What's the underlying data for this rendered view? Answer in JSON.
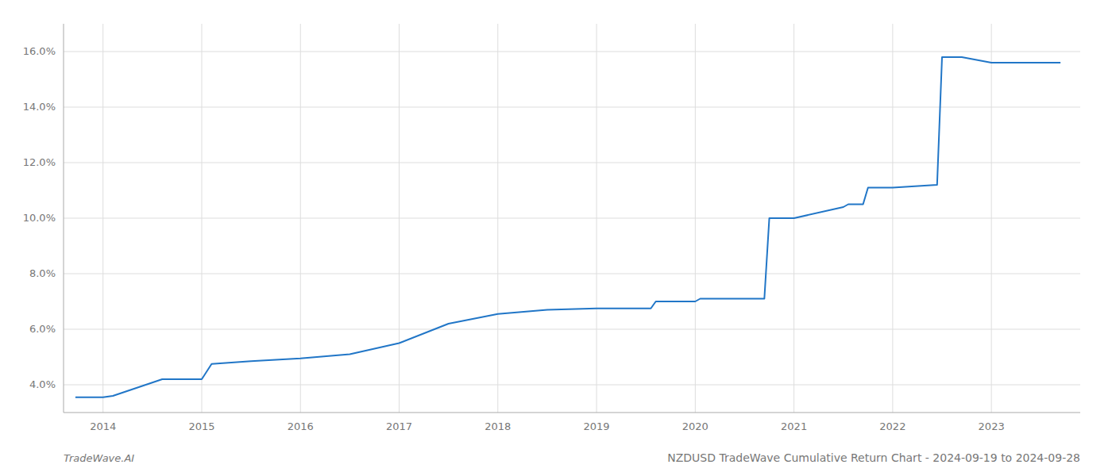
{
  "chart_data": {
    "type": "line",
    "title": "NZDUSD TradeWave Cumulative Return Chart - 2024-09-19 to 2024-09-28",
    "annotations": [
      "TradeWave.AI"
    ],
    "x": [
      2013.72,
      2014.0,
      2014.1,
      2014.6,
      2015.0,
      2015.1,
      2015.5,
      2016.0,
      2016.5,
      2017.0,
      2017.5,
      2018.0,
      2018.5,
      2019.0,
      2019.05,
      2019.55,
      2019.6,
      2020.0,
      2020.05,
      2020.7,
      2020.75,
      2021.0,
      2021.5,
      2021.55,
      2021.7,
      2021.75,
      2022.0,
      2022.45,
      2022.5,
      2022.7,
      2023.0,
      2023.7
    ],
    "values": [
      3.55,
      3.55,
      3.6,
      4.2,
      4.2,
      4.75,
      4.85,
      4.95,
      5.1,
      5.5,
      6.2,
      6.55,
      6.7,
      6.75,
      6.75,
      6.75,
      7.0,
      7.0,
      7.1,
      7.1,
      10.0,
      10.0,
      10.4,
      10.5,
      10.5,
      11.1,
      11.1,
      11.2,
      15.8,
      15.8,
      15.6,
      15.6
    ],
    "color": "#2176c7",
    "xlim": [
      2013.6,
      2023.9
    ],
    "xticks": [
      2014,
      2015,
      2016,
      2017,
      2018,
      2019,
      2020,
      2021,
      2022,
      2023
    ],
    "ylim": [
      3.0,
      17.0
    ],
    "yticks": [
      {
        "value": 4.0,
        "label": "4.0%"
      },
      {
        "value": 6.0,
        "label": "6.0%"
      },
      {
        "value": 8.0,
        "label": "8.0%"
      },
      {
        "value": 10.0,
        "label": "10.0%"
      },
      {
        "value": 12.0,
        "label": "12.0%"
      },
      {
        "value": 14.0,
        "label": "14.0%"
      },
      {
        "value": 16.0,
        "label": "16.0%"
      }
    ],
    "grid": true
  }
}
